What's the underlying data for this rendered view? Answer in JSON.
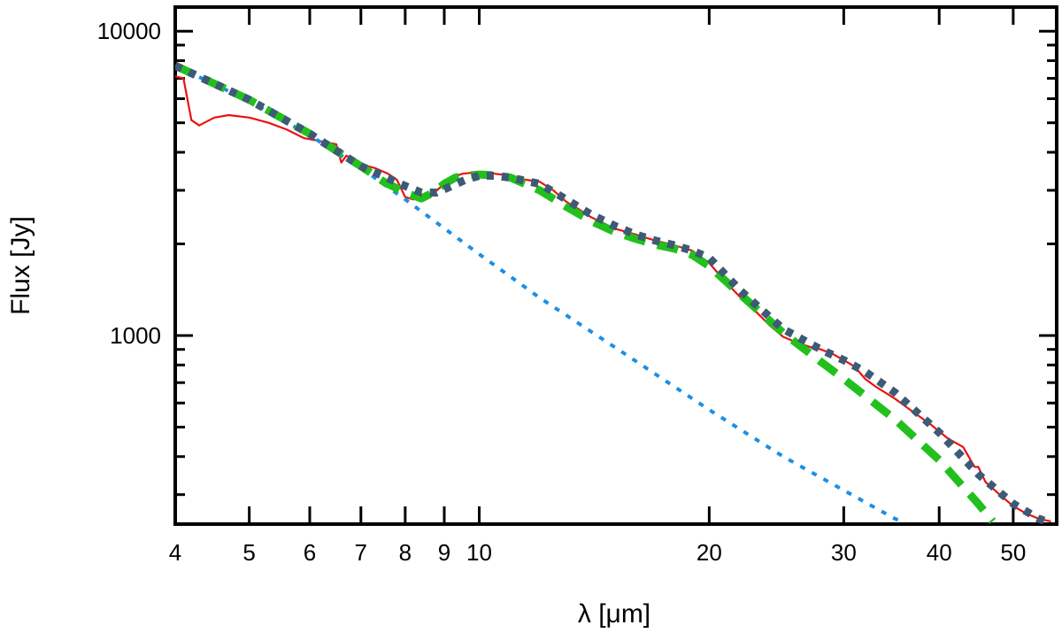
{
  "chart_data": {
    "type": "line",
    "xlabel": "λ [μm]",
    "ylabel": "Flux [Jy]",
    "x_scale": "log",
    "y_scale": "log",
    "xlim": [
      4,
      57
    ],
    "ylim": [
      240,
      12000
    ],
    "x_ticks_major": [
      4,
      5,
      6,
      7,
      8,
      9,
      10,
      20,
      30,
      40,
      50
    ],
    "x_ticks_minor": [],
    "y_ticks_major": [
      1000,
      10000
    ],
    "y_ticks_minor": [
      300,
      400,
      500,
      600,
      700,
      800,
      900,
      2000,
      3000,
      4000,
      5000,
      6000,
      7000,
      8000,
      9000
    ],
    "grid": false,
    "legend": "none",
    "series": [
      {
        "color": "#e8130f",
        "style": "solid",
        "x": [
          4.0,
          4.1,
          4.2,
          4.3,
          4.4,
          4.5,
          4.7,
          5.0,
          5.3,
          5.6,
          5.9,
          6.2,
          6.5,
          6.6,
          6.7,
          7.0,
          7.3,
          7.6,
          7.8,
          8.0,
          8.2,
          8.4,
          8.6,
          8.8,
          9.0,
          9.2,
          9.5,
          10.0,
          10.5,
          11.0,
          11.5,
          12.0,
          12.5,
          13.0,
          13.5,
          14.0,
          14.5,
          15.0,
          16.0,
          17.0,
          18.0,
          19.0,
          20.0,
          21.0,
          22.0,
          23.0,
          24.0,
          25.0,
          26.0,
          27.0,
          28.0,
          29.0,
          30.0,
          31.0,
          32.0,
          33.0,
          35.0,
          37.0,
          39.0,
          41.0,
          43.0,
          44.5,
          45.0,
          46.0,
          48.0,
          50.0,
          52.0,
          54.0,
          56.0
        ],
        "y": [
          7100,
          7000,
          5100,
          4900,
          5050,
          5200,
          5300,
          5200,
          5000,
          4750,
          4450,
          4350,
          4250,
          3700,
          3900,
          3650,
          3550,
          3400,
          3250,
          2850,
          2800,
          2850,
          2900,
          3000,
          3150,
          3300,
          3400,
          3450,
          3400,
          3350,
          3250,
          3200,
          3000,
          2750,
          2600,
          2450,
          2350,
          2250,
          2150,
          2050,
          1980,
          1900,
          1730,
          1500,
          1330,
          1200,
          1080,
          990,
          950,
          920,
          900,
          870,
          830,
          790,
          720,
          680,
          620,
          560,
          510,
          460,
          430,
          370,
          370,
          330,
          300,
          275,
          260,
          250,
          245
        ]
      },
      {
        "color": "#1a8fe8",
        "style": "dotted",
        "x": [
          4.0,
          5.0,
          6.0,
          7.0,
          8.0,
          10.0,
          12.0,
          15.0,
          20.0,
          25.0,
          30.0,
          35.0,
          36.0
        ],
        "y": [
          7700,
          5900,
          4550,
          3550,
          2800,
          1850,
          1330,
          920,
          570,
          400,
          310,
          250,
          243
        ]
      },
      {
        "color": "#22c01c",
        "style": "dashed",
        "x": [
          4.0,
          5.0,
          6.0,
          6.5,
          7.0,
          7.5,
          8.0,
          8.4,
          8.7,
          9.0,
          9.3,
          9.6,
          10.0,
          10.5,
          11.0,
          12.0,
          13.0,
          14.0,
          15.0,
          16.0,
          17.0,
          18.0,
          19.0,
          20.0,
          22.0,
          25.0,
          28.0,
          30.0,
          35.0,
          40.0,
          45.0,
          47.0
        ],
        "y": [
          7700,
          5950,
          4600,
          4050,
          3600,
          3200,
          2950,
          2820,
          2950,
          3150,
          3300,
          3350,
          3380,
          3360,
          3300,
          3000,
          2650,
          2380,
          2200,
          2080,
          1990,
          1930,
          1840,
          1690,
          1360,
          1020,
          820,
          720,
          530,
          390,
          280,
          245
        ]
      },
      {
        "color": "#3d5a76",
        "style": "dotted-thick",
        "x": [
          4.0,
          5.0,
          6.0,
          7.0,
          8.0,
          8.4,
          8.8,
          9.2,
          9.6,
          10.0,
          10.5,
          11.0,
          12.0,
          13.0,
          14.0,
          15.0,
          16.0,
          17.0,
          18.0,
          19.0,
          20.0,
          22.0,
          25.0,
          28.0,
          30.0,
          32.0,
          35.0,
          40.0,
          45.0,
          50.0,
          54.0,
          56.0
        ],
        "y": [
          7700,
          5950,
          4600,
          3600,
          3100,
          2950,
          2950,
          3100,
          3250,
          3350,
          3350,
          3300,
          3150,
          2800,
          2500,
          2300,
          2150,
          2050,
          1980,
          1900,
          1800,
          1400,
          1050,
          900,
          830,
          760,
          650,
          480,
          350,
          280,
          250,
          242
        ]
      }
    ]
  }
}
